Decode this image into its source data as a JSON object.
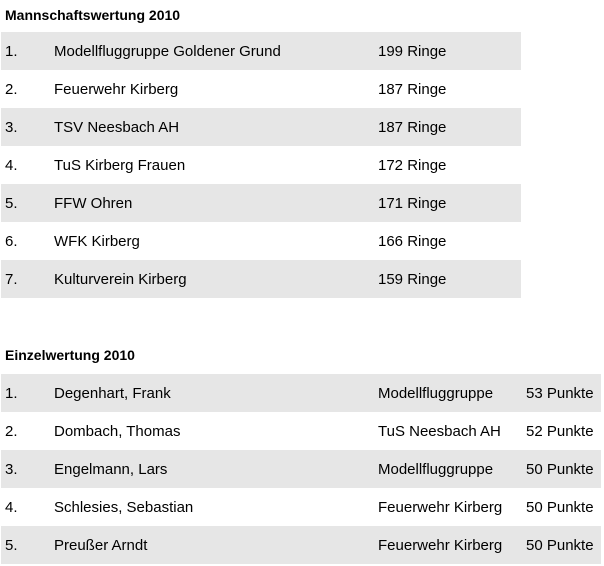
{
  "team_ranking": {
    "title": "Mannschaftswertung 2010",
    "rows": [
      {
        "rank": "1.",
        "name": "Modellfluggruppe Goldener Grund",
        "score": "199 Ringe"
      },
      {
        "rank": "2.",
        "name": "Feuerwehr Kirberg",
        "score": "187 Ringe"
      },
      {
        "rank": "3.",
        "name": "TSV Neesbach AH",
        "score": "187 Ringe"
      },
      {
        "rank": "4.",
        "name": "TuS Kirberg Frauen",
        "score": "172 Ringe"
      },
      {
        "rank": "5.",
        "name": "FFW Ohren",
        "score": "171 Ringe"
      },
      {
        "rank": "6.",
        "name": "WFK Kirberg",
        "score": "166 Ringe"
      },
      {
        "rank": "7.",
        "name": "Kulturverein Kirberg",
        "score": "159 Ringe"
      }
    ]
  },
  "individual_ranking": {
    "title": "Einzelwertung 2010",
    "rows": [
      {
        "rank": "1.",
        "name": "Degenhart, Frank",
        "club": "Modellfluggruppe",
        "points": "53 Punkte"
      },
      {
        "rank": "2.",
        "name": "Dombach, Thomas",
        "club": "TuS Neesbach AH",
        "points": "52 Punkte"
      },
      {
        "rank": "3.",
        "name": "Engelmann, Lars",
        "club": "Modellfluggruppe",
        "points": "50 Punkte"
      },
      {
        "rank": "4.",
        "name": "Schlesies, Sebastian",
        "club": "Feuerwehr Kirberg",
        "points": "50 Punkte"
      },
      {
        "rank": "5.",
        "name": "Preußer Arndt",
        "club": "Feuerwehr Kirberg",
        "points": "50 Punkte"
      }
    ]
  }
}
